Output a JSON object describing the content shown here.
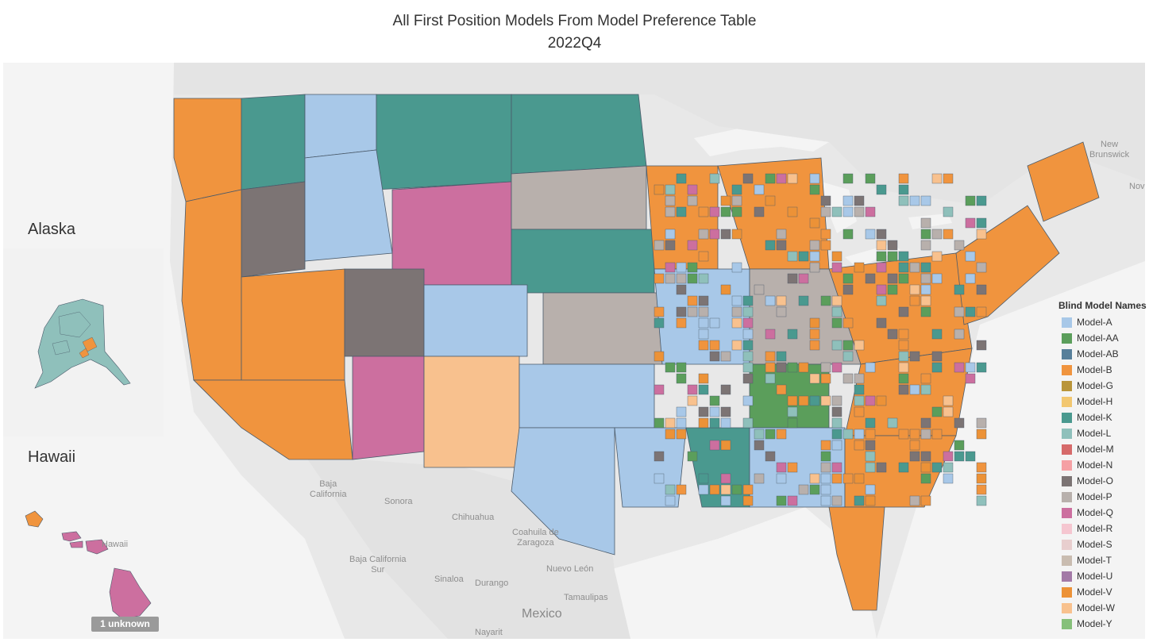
{
  "title": {
    "line1": "All First Position Models From Model Preference Table",
    "line2": "2022Q4"
  },
  "insets": {
    "alaska_label": "Alaska",
    "hawaii_label": "Hawaii"
  },
  "geo_labels": {
    "new_brunswick": "New\nBrunswick",
    "nova": "Nova",
    "baja_california": "Baja\nCalifornia",
    "sonora": "Sonora",
    "chihuahua": "Chihuahua",
    "coahuila": "Coahuila de\nZaragoza",
    "baja_california_sur": "Baja California\nSur",
    "sinaloa": "Sinaloa",
    "durango": "Durango",
    "nuevo_leon": "Nuevo León",
    "tamaulipas": "Tamaulipas",
    "mexico": "Mexico",
    "nayarit": "Nayarit",
    "hawaii_hi": "Hawaii"
  },
  "legend": {
    "title": "Blind Model Names",
    "items": [
      {
        "label": "Model-A",
        "color": "#a8c8e8"
      },
      {
        "label": "Model-AA",
        "color": "#5b9e5b"
      },
      {
        "label": "Model-AB",
        "color": "#577f9a"
      },
      {
        "label": "Model-B",
        "color": "#f0943e"
      },
      {
        "label": "Model-G",
        "color": "#b9953a"
      },
      {
        "label": "Model-H",
        "color": "#f2c770"
      },
      {
        "label": "Model-K",
        "color": "#4a998f"
      },
      {
        "label": "Model-L",
        "color": "#8fc0bb"
      },
      {
        "label": "Model-M",
        "color": "#d66a6a"
      },
      {
        "label": "Model-N",
        "color": "#f5a0a4"
      },
      {
        "label": "Model-O",
        "color": "#7c7474"
      },
      {
        "label": "Model-P",
        "color": "#b8b0ac"
      },
      {
        "label": "Model-Q",
        "color": "#cc6f9f"
      },
      {
        "label": "Model-R",
        "color": "#f5c6d0"
      },
      {
        "label": "Model-S",
        "color": "#e8cece"
      },
      {
        "label": "Model-T",
        "color": "#c9bcb0"
      },
      {
        "label": "Model-U",
        "color": "#a37aa7"
      },
      {
        "label": "Model-V",
        "color": "#ec9237"
      },
      {
        "label": "Model-W",
        "color": "#f8c18e"
      },
      {
        "label": "Model-Y",
        "color": "#86c07a"
      }
    ]
  },
  "unknown_badge": "1 unknown",
  "colors": {
    "background": "#ffffff",
    "land_outside": "#e8e8e8",
    "water": "#f4f4f4",
    "county_border": "#4a5a6a"
  }
}
